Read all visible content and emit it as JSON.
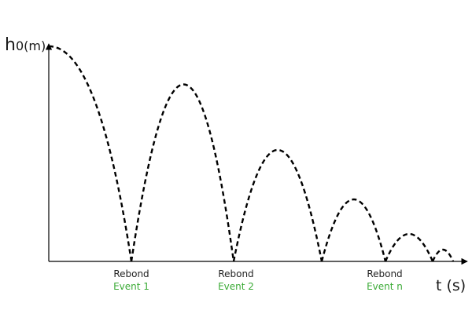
{
  "axes": {
    "y_label_main": "h",
    "y_label_unit": "0(m)",
    "x_label": "t (s)"
  },
  "events": [
    {
      "label": "Rebond",
      "sub": "Event 1"
    },
    {
      "label": "Rebond",
      "sub": "Event 2"
    },
    {
      "label": "Rebond",
      "sub": "Event n"
    }
  ],
  "colors": {
    "event_sub": "#3aaa35",
    "curve": "#000000",
    "axis": "#000000"
  }
}
